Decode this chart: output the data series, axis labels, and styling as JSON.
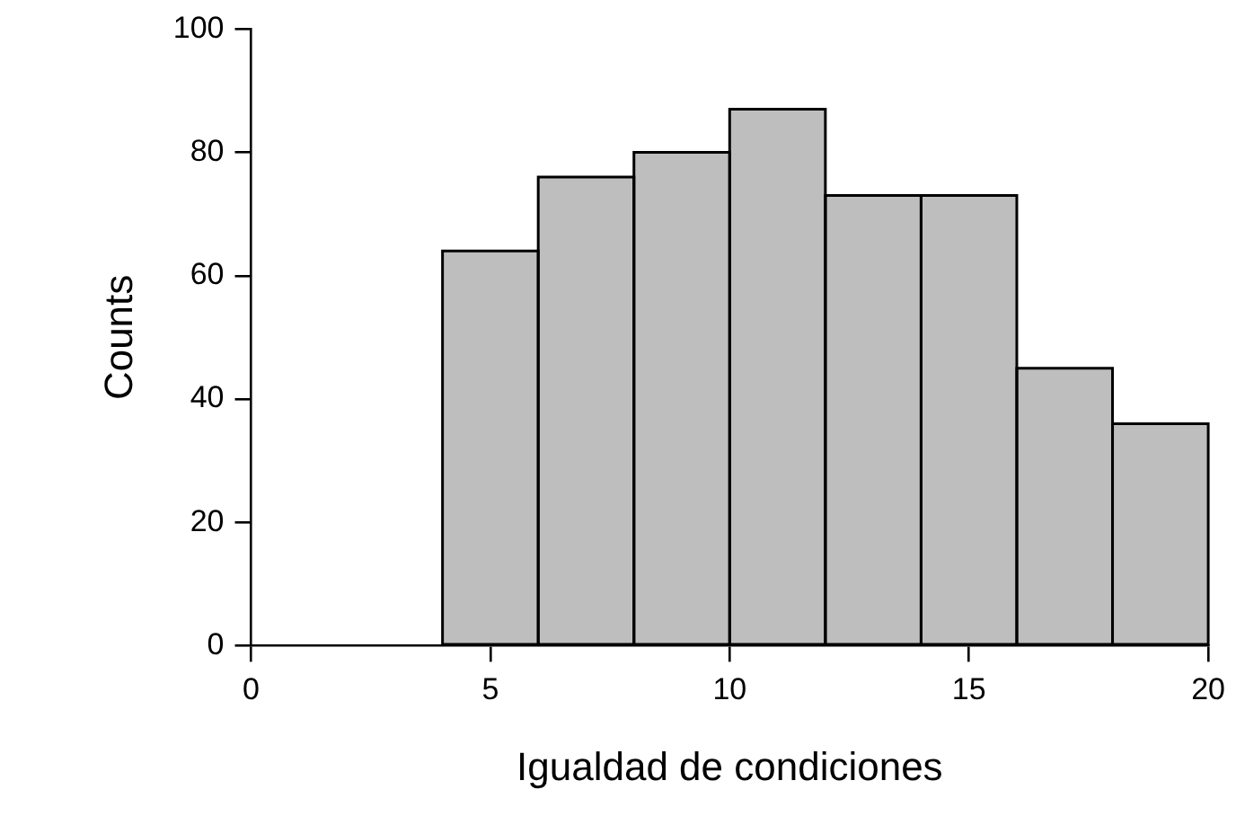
{
  "chart_data": {
    "type": "histogram",
    "xlabel": "Igualdad de condiciones",
    "ylabel": "Counts",
    "bins": [
      4,
      6,
      8,
      10,
      12,
      14,
      16,
      18,
      20
    ],
    "values": [
      64,
      76,
      80,
      87,
      73,
      73,
      45,
      36
    ],
    "color": "#bebebe",
    "xlim": [
      0,
      20
    ],
    "xticks": [
      0,
      5,
      10,
      15,
      20
    ],
    "ylim": [
      0,
      100
    ],
    "yticks": [
      0,
      20,
      40,
      60,
      80,
      100
    ],
    "grid": false,
    "legend": false
  }
}
